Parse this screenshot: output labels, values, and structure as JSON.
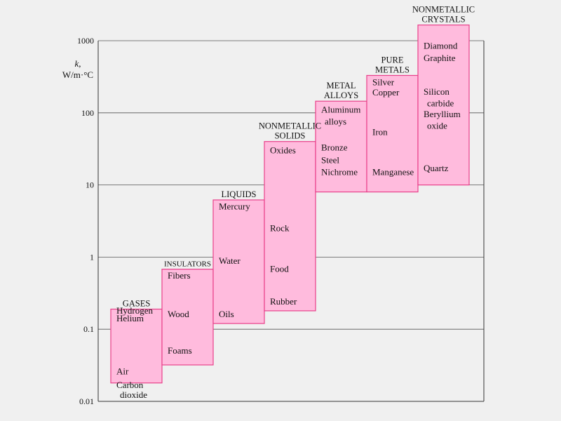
{
  "chart_data": {
    "type": "bar",
    "yscale": "log",
    "ylim": [
      0.01,
      1000
    ],
    "grid": true,
    "ylabel": [
      "k,",
      "W/m·°C"
    ],
    "yticks": [
      "0.01",
      "0.1",
      "1",
      "10",
      "100",
      "1000"
    ],
    "bar_color": "#ffbbdd",
    "bar_edge_color": "#e8408a",
    "categories": [
      {
        "label": [
          "GASES"
        ],
        "range": [
          0.018,
          0.19
        ],
        "items": [
          {
            "text": "Hydrogen",
            "k": 0.18
          },
          {
            "text": "Helium",
            "k": 0.14
          },
          {
            "text": "Air",
            "k": 0.026
          },
          {
            "text": "Carbon",
            "k": 0.0168
          },
          {
            "text": "dioxide",
            "k": 0.0122,
            "indent": true
          }
        ]
      },
      {
        "label": [
          "INSULATORS"
        ],
        "range": [
          0.032,
          0.68
        ],
        "items": [
          {
            "text": "Fibers",
            "k": 0.55
          },
          {
            "text": "Wood",
            "k": 0.16
          },
          {
            "text": "Foams",
            "k": 0.05
          }
        ]
      },
      {
        "label": [
          "LIQUIDS"
        ],
        "range": [
          0.12,
          6.2
        ],
        "items": [
          {
            "text": "Mercury",
            "k": 5.0
          },
          {
            "text": "Water",
            "k": 0.88
          },
          {
            "text": "Oils",
            "k": 0.16
          }
        ]
      },
      {
        "label": [
          "NONMETALLIC",
          "SOLIDS"
        ],
        "range": [
          0.18,
          40
        ],
        "items": [
          {
            "text": "Oxides",
            "k": 30
          },
          {
            "text": "Rock",
            "k": 2.5
          },
          {
            "text": "Food",
            "k": 0.68
          },
          {
            "text": "Rubber",
            "k": 0.24
          }
        ]
      },
      {
        "label": [
          "METAL",
          "ALLOYS"
        ],
        "range": [
          8,
          145
        ],
        "items": [
          {
            "text": "Aluminum",
            "k": 110
          },
          {
            "text": "alloys",
            "k": 75,
            "indent": true
          },
          {
            "text": "Bronze",
            "k": 33
          },
          {
            "text": "Steel",
            "k": 22
          },
          {
            "text": "Nichrome",
            "k": 15
          }
        ]
      },
      {
        "label": [
          "PURE",
          "METALS"
        ],
        "range": [
          8,
          330
        ],
        "items": [
          {
            "text": "Silver",
            "k": 265
          },
          {
            "text": "Copper",
            "k": 190
          },
          {
            "text": "Iron",
            "k": 54
          },
          {
            "text": "Manganese",
            "k": 15
          }
        ]
      },
      {
        "label": [
          "NONMETALLIC",
          "CRYSTALS"
        ],
        "range": [
          10,
          1650
        ],
        "items": [
          {
            "text": "Diamond",
            "k": 850
          },
          {
            "text": "Graphite",
            "k": 570
          },
          {
            "text": "Silicon",
            "k": 195
          },
          {
            "text": "carbide",
            "k": 135,
            "indent": true
          },
          {
            "text": "Beryllium",
            "k": 95
          },
          {
            "text": "oxide",
            "k": 66,
            "indent": true
          },
          {
            "text": "Quartz",
            "k": 17
          }
        ]
      }
    ]
  }
}
